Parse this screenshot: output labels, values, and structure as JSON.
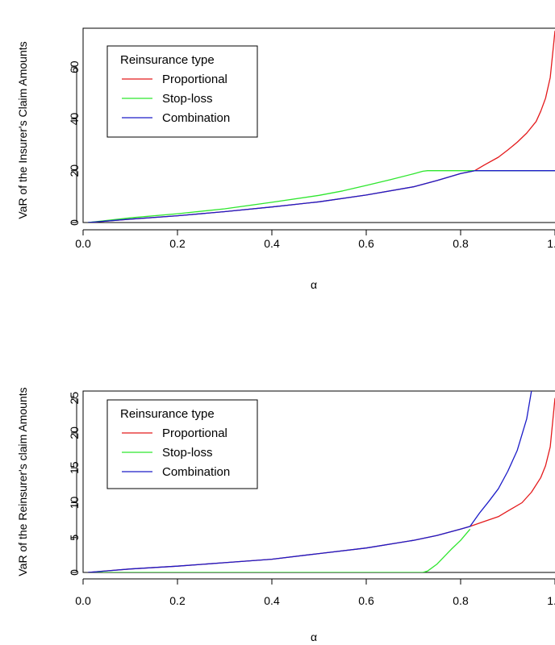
{
  "chart_data": [
    {
      "type": "line",
      "title": "",
      "xlabel": "α",
      "ylabel": "VaR of the Insurer's Claim Amounts",
      "xlim": [
        0,
        1
      ],
      "ylim": [
        0,
        75
      ],
      "xticks": [
        0.0,
        0.2,
        0.4,
        0.6,
        0.8,
        1.0
      ],
      "xtick_labels": [
        "0.0",
        "0.2",
        "0.4",
        "0.6",
        "0.8",
        "1.0"
      ],
      "yticks": [
        0,
        20,
        40,
        60
      ],
      "ytick_labels": [
        "0",
        "20",
        "40",
        "60"
      ],
      "grid": false,
      "legend": {
        "title": "Reinsurance type",
        "position": "top-left",
        "entries": [
          "Proportional",
          "Stop-loss",
          "Combination"
        ]
      },
      "series": [
        {
          "name": "Proportional",
          "color": "#e41a1c",
          "x": [
            0.01,
            0.1,
            0.2,
            0.3,
            0.4,
            0.5,
            0.6,
            0.7,
            0.75,
            0.8,
            0.83,
            0.85,
            0.88,
            0.9,
            0.92,
            0.94,
            0.96,
            0.97,
            0.98,
            0.99,
            1.0
          ],
          "y": [
            0,
            1.3,
            2.6,
            4.2,
            6,
            8,
            10.6,
            13.8,
            16.2,
            18.9,
            20,
            22.2,
            25.2,
            28,
            31,
            34.5,
            39,
            43,
            48,
            56,
            74
          ]
        },
        {
          "name": "Stop-loss",
          "color": "#2ee62e",
          "x": [
            0.01,
            0.1,
            0.2,
            0.3,
            0.4,
            0.5,
            0.55,
            0.6,
            0.65,
            0.7,
            0.72,
            0.73,
            0.8,
            0.9,
            1.0
          ],
          "y": [
            0,
            1.8,
            3.4,
            5.3,
            7.8,
            10.5,
            12.2,
            14.3,
            16.5,
            18.8,
            19.8,
            20,
            20,
            20,
            20
          ]
        },
        {
          "name": "Combination",
          "color": "#1c1cc8",
          "x": [
            0.01,
            0.1,
            0.2,
            0.3,
            0.4,
            0.5,
            0.6,
            0.7,
            0.75,
            0.8,
            0.83,
            0.9,
            1.0
          ],
          "y": [
            0,
            1.3,
            2.6,
            4.2,
            6,
            8,
            10.6,
            13.8,
            16.2,
            18.9,
            20,
            20,
            20
          ]
        }
      ]
    },
    {
      "type": "line",
      "title": "",
      "xlabel": "α",
      "ylabel": "VaR of the Reinsurer's claim Amounts",
      "xlim": [
        0,
        1
      ],
      "ylim": [
        0,
        26
      ],
      "xticks": [
        0.0,
        0.2,
        0.4,
        0.6,
        0.8,
        1.0
      ],
      "xtick_labels": [
        "0.0",
        "0.2",
        "0.4",
        "0.6",
        "0.8",
        "1.0"
      ],
      "yticks": [
        0,
        5,
        10,
        15,
        20,
        25
      ],
      "ytick_labels": [
        "0",
        "5",
        "10",
        "15",
        "20",
        "25"
      ],
      "grid": false,
      "legend": {
        "title": "Reinsurance type",
        "position": "top-left",
        "entries": [
          "Proportional",
          "Stop-loss",
          "Combination"
        ]
      },
      "series": [
        {
          "name": "Proportional",
          "color": "#e41a1c",
          "x": [
            0.01,
            0.1,
            0.2,
            0.3,
            0.4,
            0.5,
            0.6,
            0.7,
            0.75,
            0.8,
            0.82,
            0.85,
            0.88,
            0.9,
            0.93,
            0.95,
            0.97,
            0.98,
            0.99,
            1.0
          ],
          "y": [
            0,
            0.5,
            0.9,
            1.4,
            1.9,
            2.7,
            3.5,
            4.6,
            5.3,
            6.2,
            6.6,
            7.3,
            8,
            8.8,
            10,
            11.5,
            13.6,
            15.3,
            18,
            25
          ]
        },
        {
          "name": "Stop-loss",
          "color": "#2ee62e",
          "x": [
            0.01,
            0.2,
            0.4,
            0.6,
            0.72,
            0.73,
            0.75,
            0.78,
            0.8,
            0.82
          ],
          "y": [
            0,
            0,
            0,
            0,
            0,
            0.2,
            1.2,
            3.3,
            4.6,
            6.2
          ]
        },
        {
          "name": "Combination",
          "color": "#1c1cc8",
          "x": [
            0.01,
            0.1,
            0.2,
            0.3,
            0.4,
            0.5,
            0.6,
            0.7,
            0.75,
            0.8,
            0.82,
            0.84,
            0.86,
            0.88,
            0.9,
            0.92,
            0.94,
            0.95
          ],
          "y": [
            0,
            0.5,
            0.9,
            1.4,
            1.9,
            2.7,
            3.5,
            4.6,
            5.3,
            6.2,
            6.6,
            8.5,
            10.2,
            12,
            14.5,
            17.5,
            22,
            26
          ]
        }
      ]
    }
  ]
}
